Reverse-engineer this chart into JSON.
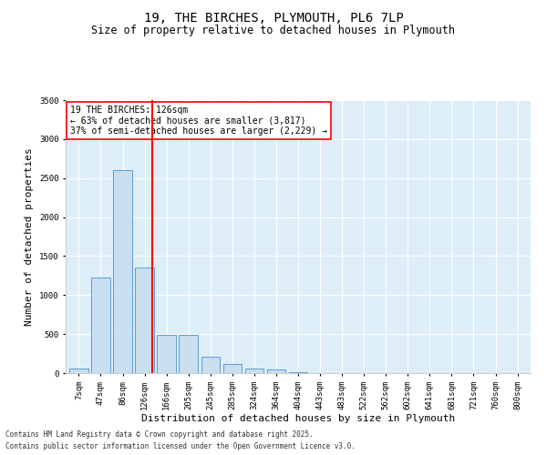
{
  "title": "19, THE BIRCHES, PLYMOUTH, PL6 7LP",
  "subtitle": "Size of property relative to detached houses in Plymouth",
  "xlabel": "Distribution of detached houses by size in Plymouth",
  "ylabel": "Number of detached properties",
  "categories": [
    "7sqm",
    "47sqm",
    "86sqm",
    "126sqm",
    "166sqm",
    "205sqm",
    "245sqm",
    "285sqm",
    "324sqm",
    "364sqm",
    "404sqm",
    "443sqm",
    "483sqm",
    "522sqm",
    "562sqm",
    "602sqm",
    "641sqm",
    "681sqm",
    "721sqm",
    "760sqm",
    "800sqm"
  ],
  "values": [
    60,
    1230,
    2600,
    1350,
    490,
    490,
    210,
    120,
    60,
    50,
    10,
    0,
    0,
    0,
    0,
    0,
    0,
    0,
    0,
    0,
    0
  ],
  "bar_color": "#c9dff0",
  "bar_edge_color": "#5b9bd5",
  "vline_color": "red",
  "vline_index": 3,
  "annotation_text": "19 THE BIRCHES: 126sqm\n← 63% of detached houses are smaller (3,817)\n37% of semi-detached houses are larger (2,229) →",
  "annotation_box_color": "white",
  "annotation_box_edge": "red",
  "ylim": [
    0,
    3500
  ],
  "yticks": [
    0,
    500,
    1000,
    1500,
    2000,
    2500,
    3000,
    3500
  ],
  "footer_line1": "Contains HM Land Registry data © Crown copyright and database right 2025.",
  "footer_line2": "Contains public sector information licensed under the Open Government Licence v3.0.",
  "bg_color": "#ddeef8",
  "title_fontsize": 10,
  "subtitle_fontsize": 8.5,
  "tick_fontsize": 6.5,
  "label_fontsize": 8,
  "annotation_fontsize": 7,
  "footer_fontsize": 5.5
}
